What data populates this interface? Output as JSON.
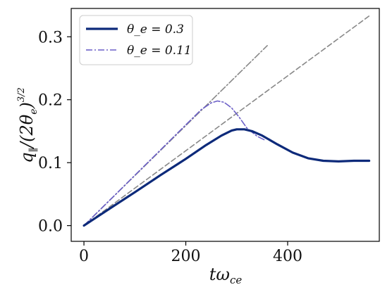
{
  "chart_data": {
    "type": "line",
    "title": "",
    "xlabel": "tω_ce",
    "ylabel": "q_∥ / (2θ_e)^(3/2)",
    "xlim": [
      -25,
      580
    ],
    "ylim": [
      -0.025,
      0.345
    ],
    "xticks": [
      0,
      200,
      400
    ],
    "xtick_labels": [
      "0",
      "200",
      "400"
    ],
    "yticks": [
      0.0,
      0.1,
      0.2,
      0.3
    ],
    "ytick_labels": [
      "0.0",
      "0.1",
      "0.2",
      "0.3"
    ],
    "grid": false,
    "legend_position": "top-left",
    "series": [
      {
        "name": "θ_e = 0.3",
        "style": "solid",
        "color": "#0d2a7a",
        "x": [
          0,
          30,
          60,
          100,
          150,
          200,
          240,
          270,
          290,
          300,
          315,
          330,
          350,
          380,
          410,
          440,
          470,
          500,
          530,
          560
        ],
        "y": [
          0.0,
          0.016,
          0.032,
          0.053,
          0.08,
          0.106,
          0.128,
          0.143,
          0.151,
          0.153,
          0.153,
          0.15,
          0.143,
          0.129,
          0.116,
          0.107,
          0.103,
          0.102,
          0.103,
          0.103
        ]
      },
      {
        "name": "θ_e = 0.11",
        "style": "dashdot",
        "color": "#6b5fc7",
        "x": [
          0,
          50,
          100,
          150,
          200,
          230,
          250,
          262,
          275,
          290,
          305,
          320,
          340,
          355
        ],
        "y": [
          0.0,
          0.04,
          0.08,
          0.12,
          0.16,
          0.184,
          0.195,
          0.198,
          0.196,
          0.187,
          0.172,
          0.155,
          0.142,
          0.136
        ]
      },
      {
        "name": "",
        "style": "dashdot",
        "color": "#888888",
        "x": [
          0,
          360
        ],
        "y": [
          0.0,
          0.286
        ]
      },
      {
        "name": "",
        "style": "dashed",
        "color": "#888888",
        "x": [
          0,
          560
        ],
        "y": [
          0.0,
          0.333
        ]
      }
    ]
  }
}
